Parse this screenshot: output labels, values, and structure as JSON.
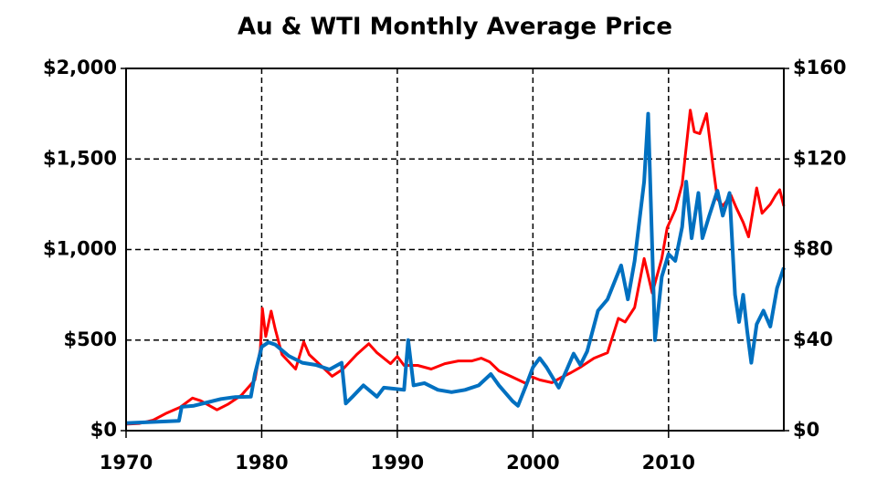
{
  "chart_data": {
    "type": "line",
    "title": "Au  &  WTI  Monthly  Average  Price",
    "xlim": [
      1970,
      2018.5
    ],
    "xticks": [
      1970,
      1980,
      1990,
      2000,
      2010
    ],
    "ylim": [
      0,
      2000
    ],
    "yticks": [
      {
        "value": 0,
        "label": "$0"
      },
      {
        "value": 500,
        "label": "$500"
      },
      {
        "value": 1000,
        "label": "$1,000"
      },
      {
        "value": 1500,
        "label": "$1,500"
      },
      {
        "value": 2000,
        "label": "$2,000"
      }
    ],
    "y2lim": [
      0,
      160
    ],
    "y2ticks": [
      {
        "value": 0,
        "label": "$0"
      },
      {
        "value": 40,
        "label": "$40"
      },
      {
        "value": 80,
        "label": "$80"
      },
      {
        "value": 120,
        "label": "$120"
      },
      {
        "value": 160,
        "label": "$160"
      }
    ],
    "grid": true,
    "series": [
      {
        "color": "#ff0000",
        "axis": "y",
        "x": [
          1970,
          1971,
          1972,
          1973,
          1974,
          1974.9,
          1975.5,
          1976.7,
          1977.5,
          1978.5,
          1979.5,
          1979.9,
          1980.05,
          1980.3,
          1980.7,
          1981,
          1981.5,
          1982.5,
          1983.1,
          1983.5,
          1984.5,
          1985.2,
          1986,
          1987,
          1987.9,
          1988.5,
          1989.5,
          1990,
          1990.5,
          1991.5,
          1992.5,
          1993.5,
          1994.5,
          1995.5,
          1996.2,
          1996.8,
          1997.5,
          1998.5,
          1999.5,
          1999.8,
          2000.5,
          2001.4,
          2002,
          2002.8,
          2003.5,
          2004.5,
          2005.5,
          2006.3,
          2006.8,
          2007.5,
          2008.2,
          2008.8,
          2009.5,
          2009.9,
          2010.5,
          2011,
          2011.6,
          2011.9,
          2012.3,
          2012.8,
          2013.3,
          2013.6,
          2014,
          2014.6,
          2015,
          2015.5,
          2015.9,
          2016.5,
          2016.9,
          2017.5,
          2017.9,
          2018.2,
          2018.5
        ],
        "values": [
          36,
          40,
          58,
          97,
          130,
          180,
          165,
          115,
          145,
          195,
          280,
          450,
          675,
          520,
          660,
          560,
          420,
          340,
          490,
          420,
          350,
          300,
          340,
          420,
          480,
          430,
          370,
          410,
          360,
          360,
          340,
          370,
          385,
          385,
          400,
          380,
          330,
          295,
          260,
          300,
          280,
          265,
          290,
          320,
          350,
          400,
          430,
          620,
          600,
          680,
          950,
          760,
          950,
          1120,
          1220,
          1360,
          1770,
          1650,
          1640,
          1750,
          1450,
          1280,
          1240,
          1300,
          1230,
          1150,
          1070,
          1340,
          1200,
          1250,
          1300,
          1330,
          1240
        ]
      },
      {
        "color": "#0070c0",
        "axis": "y2",
        "x": [
          1970,
          1973.9,
          1974.1,
          1975,
          1976,
          1977,
          1978,
          1979.2,
          1979.5,
          1980,
          1980.5,
          1981,
          1982,
          1983,
          1984,
          1985,
          1985.9,
          1986.2,
          1986.7,
          1987.5,
          1988.5,
          1989,
          1990.5,
          1990.8,
          1991.2,
          1992,
          1993,
          1994,
          1995,
          1996,
          1996.9,
          1997.5,
          1998.5,
          1998.9,
          1999.5,
          2000,
          2000.5,
          2001,
          2001.9,
          2002.5,
          2003,
          2003.5,
          2004,
          2004.8,
          2005.5,
          2006.5,
          2007,
          2007.5,
          2007.9,
          2008.2,
          2008.5,
          2008.9,
          2009,
          2009.5,
          2010,
          2010.5,
          2011,
          2011.3,
          2011.7,
          2012.2,
          2012.5,
          2013,
          2013.6,
          2014,
          2014.5,
          2014.9,
          2015.2,
          2015.5,
          2015.8,
          2016.1,
          2016.5,
          2017,
          2017.5,
          2018,
          2018.5
        ],
        "values": [
          3.35,
          4.3,
          10.5,
          11,
          12.5,
          14,
          14.8,
          15,
          25,
          37,
          39,
          38,
          33,
          30,
          29,
          27,
          30,
          12,
          15,
          20,
          15,
          19,
          18,
          40,
          20,
          21,
          18,
          17,
          18,
          20,
          25,
          20,
          13,
          11,
          20,
          28,
          32,
          28,
          19,
          27,
          34,
          29,
          35,
          53,
          58,
          73,
          58,
          75,
          95,
          110,
          140,
          60,
          40,
          68,
          78,
          75,
          90,
          110,
          85,
          105,
          85,
          95,
          106,
          95,
          105,
          60,
          48,
          60,
          44,
          30,
          47,
          53,
          46,
          63,
          72
        ]
      }
    ]
  }
}
